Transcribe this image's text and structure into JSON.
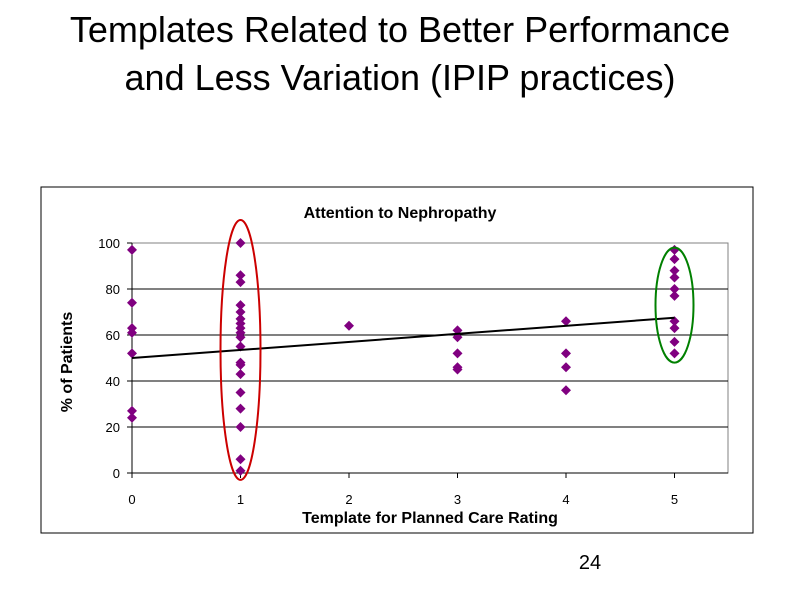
{
  "slide": {
    "title": "Templates Related to Better Performance and Less Variation (IPIP practices)",
    "page_number": "24"
  },
  "colors": {
    "marker": "#800080",
    "trendline": "#000000",
    "gridline": "#000000",
    "plot_border": "#808080",
    "highlight_rating_1": "#cc0000",
    "highlight_rating_5": "#008000"
  },
  "chart_data": {
    "type": "scatter",
    "title": "Attention to Nephropathy",
    "xlabel": "Template for Planned Care Rating",
    "ylabel": "% of Patients",
    "xlim": [
      0,
      5.5
    ],
    "ylim": [
      0,
      100
    ],
    "xticks": [
      "0",
      "1",
      "2",
      "3",
      "4",
      "5"
    ],
    "yticks": [
      "0",
      "20",
      "40",
      "60",
      "80",
      "100"
    ],
    "gridlines": "horizontal",
    "legend": "none",
    "marker_shape": "diamond",
    "series": [
      {
        "points": [
          [
            0,
            97
          ],
          [
            0,
            74
          ],
          [
            0,
            63
          ],
          [
            0,
            61
          ],
          [
            0,
            52
          ],
          [
            0,
            27
          ],
          [
            0,
            24
          ],
          [
            1,
            100
          ],
          [
            1,
            86
          ],
          [
            1,
            83
          ],
          [
            1,
            73
          ],
          [
            1,
            70
          ],
          [
            1,
            67
          ],
          [
            1,
            65
          ],
          [
            1,
            63
          ],
          [
            1,
            61
          ],
          [
            1,
            59
          ],
          [
            1,
            55
          ],
          [
            1,
            48
          ],
          [
            1,
            47
          ],
          [
            1,
            43
          ],
          [
            1,
            35
          ],
          [
            1,
            28
          ],
          [
            1,
            20
          ],
          [
            1,
            6
          ],
          [
            1,
            1
          ],
          [
            2,
            64
          ],
          [
            3,
            62
          ],
          [
            3,
            59
          ],
          [
            3,
            52
          ],
          [
            3,
            46
          ],
          [
            3,
            45
          ],
          [
            4,
            66
          ],
          [
            4,
            52
          ],
          [
            4,
            46
          ],
          [
            4,
            36
          ],
          [
            5,
            97
          ],
          [
            5,
            93
          ],
          [
            5,
            88
          ],
          [
            5,
            85
          ],
          [
            5,
            80
          ],
          [
            5,
            77
          ],
          [
            5,
            66
          ],
          [
            5,
            63
          ],
          [
            5,
            57
          ],
          [
            5,
            52
          ]
        ]
      }
    ],
    "trendline": {
      "type": "linear",
      "x": [
        0,
        5
      ],
      "y": [
        50,
        67.5
      ]
    },
    "highlights": [
      {
        "x": 1,
        "y_range": [
          -3,
          110
        ],
        "color": "red"
      },
      {
        "x": 5,
        "y_range": [
          48,
          98
        ],
        "color": "green"
      }
    ]
  }
}
